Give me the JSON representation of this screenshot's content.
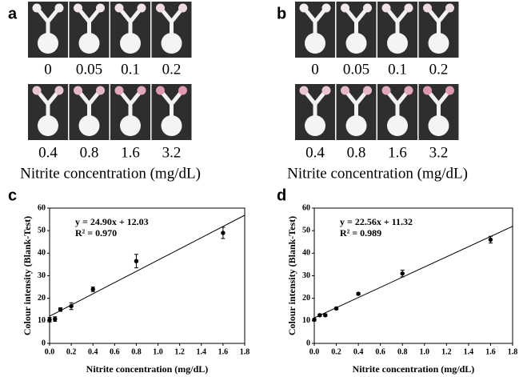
{
  "photo_panels": [
    {
      "label": "a",
      "rows": [
        [
          "0",
          "0.05",
          "0.1",
          "0.2"
        ],
        [
          "0.4",
          "0.8",
          "1.6",
          "3.2"
        ]
      ],
      "xlabel": "Nitrite concentration (mg/dL)"
    },
    {
      "label": "b",
      "rows": [
        [
          "0",
          "0.05",
          "0.1",
          "0.2"
        ],
        [
          "0.4",
          "0.8",
          "1.6",
          "3.2"
        ]
      ],
      "xlabel": "Nitrite concentration (mg/dL)"
    }
  ],
  "chart_data": [
    {
      "type": "scatter",
      "panel_label": "c",
      "x": [
        0,
        0.05,
        0.1,
        0.2,
        0.4,
        0.8,
        1.6
      ],
      "values": [
        10.5,
        10.8,
        15,
        16.5,
        24,
        36.5,
        49
      ],
      "errors": [
        1,
        1,
        0.8,
        1.5,
        1,
        3,
        2.5
      ],
      "color": "#000",
      "trendline": {
        "slope": 24.9,
        "intercept": 12.03
      },
      "annotation": [
        "y   = 24.90x + 12.03",
        "R² = 0.970"
      ],
      "xlabel": "Nitrite concentration (mg/dL)",
      "ylabel": "Colour intensity (Blank-Test)",
      "xlim": [
        0,
        1.8
      ],
      "xticks": [
        {
          "value": 0,
          "label": "0.0"
        },
        0.2,
        0.4,
        0.6,
        0.8,
        {
          "value": 1,
          "label": "1.0"
        },
        1.2,
        1.4,
        1.6,
        1.8
      ],
      "ylim": [
        0,
        60
      ],
      "yticks": [
        0,
        10,
        20,
        30,
        40,
        50,
        60
      ]
    },
    {
      "type": "scatter",
      "panel_label": "d",
      "x": [
        0,
        0.05,
        0.1,
        0.2,
        0.4,
        0.8,
        1.6
      ],
      "values": [
        10.5,
        12.5,
        12.5,
        15.5,
        22,
        31,
        46
      ],
      "errors": [
        0.5,
        0.5,
        0.5,
        0.5,
        0.5,
        1.5,
        1.5
      ],
      "color": "#000",
      "trendline": {
        "slope": 22.56,
        "intercept": 11.32
      },
      "annotation": [
        "y   = 22.56x + 11.32",
        "R² = 0.989"
      ],
      "xlabel": "Nitrite concentration (mg/dL)",
      "ylabel": "Colour intensity (Blank-Test)",
      "xlim": [
        0,
        1.8
      ],
      "xticks": [
        {
          "value": 0,
          "label": "0.0"
        },
        0.2,
        0.4,
        0.6,
        0.8,
        {
          "value": 1,
          "label": "1.0"
        },
        1.2,
        1.4,
        1.6,
        1.8
      ],
      "ylim": [
        0,
        60
      ],
      "yticks": [
        0,
        10,
        20,
        30,
        40,
        50,
        60
      ]
    }
  ]
}
